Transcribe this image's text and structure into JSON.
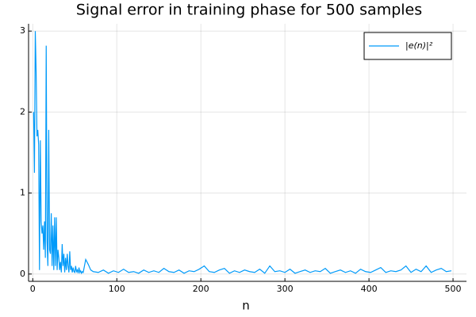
{
  "chart_data": {
    "type": "line",
    "title": "Signal error in training phase for 500 samples",
    "x_label": "n",
    "x": [
      1,
      2,
      3,
      4,
      5,
      6,
      7,
      8,
      9,
      10,
      11,
      12,
      13,
      14,
      15,
      16,
      17,
      18,
      19,
      20,
      21,
      22,
      23,
      24,
      25,
      26,
      27,
      28,
      29,
      30,
      31,
      32,
      33,
      34,
      35,
      36,
      37,
      38,
      39,
      40,
      41,
      42,
      43,
      44,
      45,
      46,
      47,
      48,
      49,
      50,
      51,
      52,
      53,
      54,
      55,
      56,
      57,
      58,
      59,
      60,
      63,
      66,
      69,
      72,
      78,
      84,
      90,
      96,
      102,
      108,
      114,
      120,
      126,
      132,
      138,
      144,
      150,
      156,
      162,
      168,
      174,
      180,
      186,
      192,
      198,
      204,
      210,
      216,
      222,
      228,
      234,
      240,
      246,
      252,
      258,
      264,
      270,
      276,
      282,
      288,
      294,
      300,
      306,
      312,
      318,
      324,
      330,
      336,
      342,
      348,
      354,
      360,
      366,
      372,
      378,
      384,
      390,
      396,
      402,
      408,
      414,
      420,
      426,
      432,
      438,
      444,
      450,
      456,
      462,
      468,
      474,
      480,
      486,
      492,
      498
    ],
    "series": [
      {
        "name": "|e(n)|²",
        "color": "#009af9",
        "values": [
          2.0,
          1.25,
          3.0,
          2.5,
          1.7,
          1.78,
          1.6,
          0.05,
          1.65,
          0.65,
          0.5,
          0.6,
          0.3,
          0.65,
          0.2,
          2.82,
          0.4,
          0.1,
          1.78,
          0.3,
          0.25,
          0.75,
          0.1,
          0.6,
          0.05,
          0.7,
          0.1,
          0.7,
          0.05,
          0.3,
          0.2,
          0.05,
          0.15,
          0.02,
          0.37,
          0.1,
          0.25,
          0.02,
          0.2,
          0.05,
          0.25,
          0.1,
          0.02,
          0.28,
          0.05,
          0.1,
          0.02,
          0.08,
          0.03,
          0.02,
          0.1,
          0.03,
          0.05,
          0.01,
          0.08,
          0.02,
          0.04,
          0.01,
          0.03,
          0.02,
          0.18,
          0.12,
          0.05,
          0.03,
          0.02,
          0.05,
          0.01,
          0.04,
          0.02,
          0.06,
          0.02,
          0.03,
          0.01,
          0.05,
          0.02,
          0.04,
          0.02,
          0.07,
          0.03,
          0.02,
          0.05,
          0.01,
          0.04,
          0.03,
          0.06,
          0.1,
          0.03,
          0.02,
          0.05,
          0.07,
          0.01,
          0.04,
          0.02,
          0.05,
          0.03,
          0.02,
          0.06,
          0.01,
          0.1,
          0.03,
          0.04,
          0.02,
          0.06,
          0.01,
          0.03,
          0.05,
          0.02,
          0.04,
          0.03,
          0.07,
          0.01,
          0.03,
          0.05,
          0.02,
          0.04,
          0.01,
          0.06,
          0.03,
          0.02,
          0.05,
          0.08,
          0.02,
          0.04,
          0.03,
          0.05,
          0.1,
          0.02,
          0.06,
          0.03,
          0.1,
          0.02,
          0.05,
          0.07,
          0.03,
          0.04
        ]
      }
    ],
    "xlim": [
      -5,
      516
    ],
    "xticks": [
      0,
      100,
      200,
      300,
      400,
      500
    ],
    "ylim": [
      -0.09,
      3.09
    ],
    "yticks": [
      0,
      1,
      2,
      3
    ],
    "grid": true,
    "legend": "top-right"
  }
}
